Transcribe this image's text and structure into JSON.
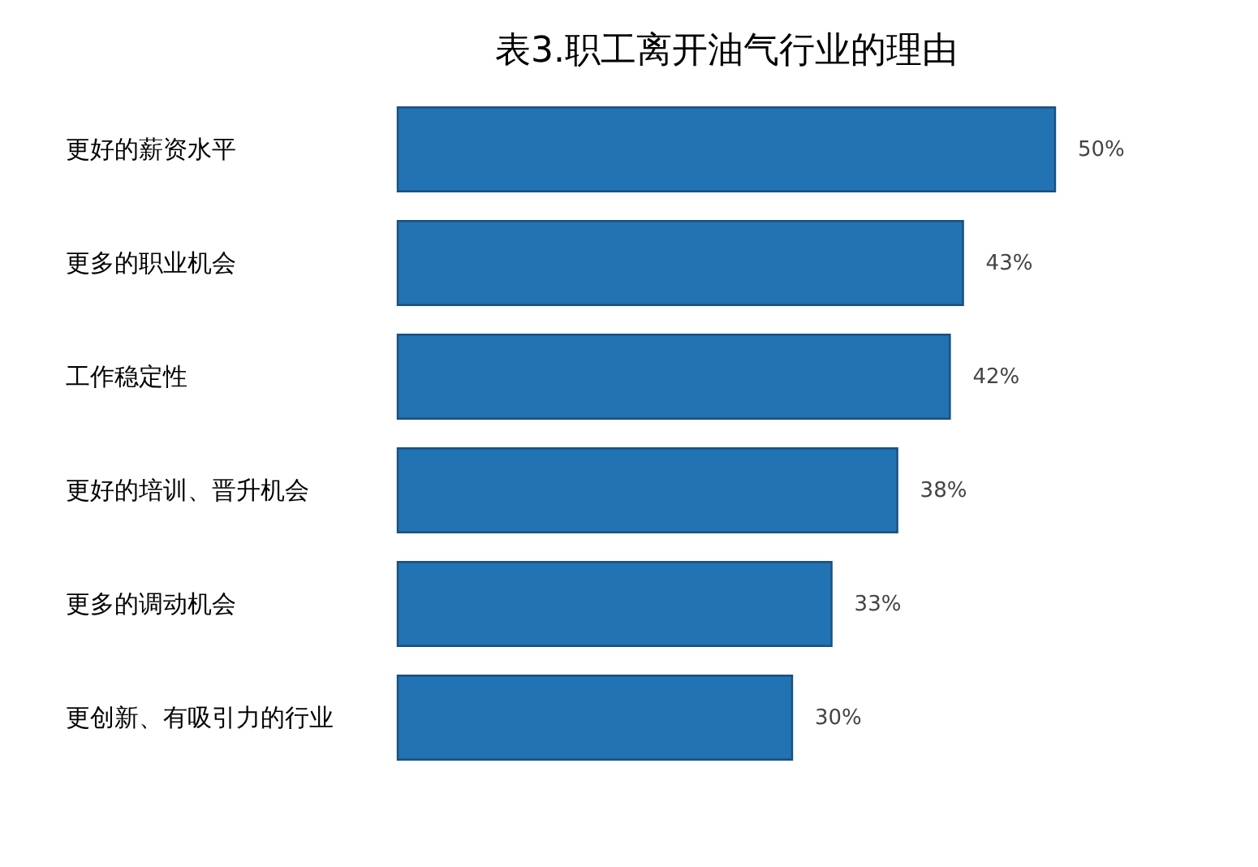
{
  "chart_data": {
    "type": "bar",
    "orientation": "horizontal",
    "title": "表3.职工离开油气行业的理由",
    "categories": [
      "更好的薪资水平",
      "更多的职业机会",
      "工作稳定性",
      "更好的培训、晋升机会",
      "更多的调动机会",
      "更创新、有吸引力的行业"
    ],
    "values": [
      50,
      43,
      42,
      38,
      33,
      30
    ],
    "value_labels": [
      "50%",
      "43%",
      "42%",
      "38%",
      "33%",
      "30%"
    ],
    "color": "#2173b3"
  }
}
